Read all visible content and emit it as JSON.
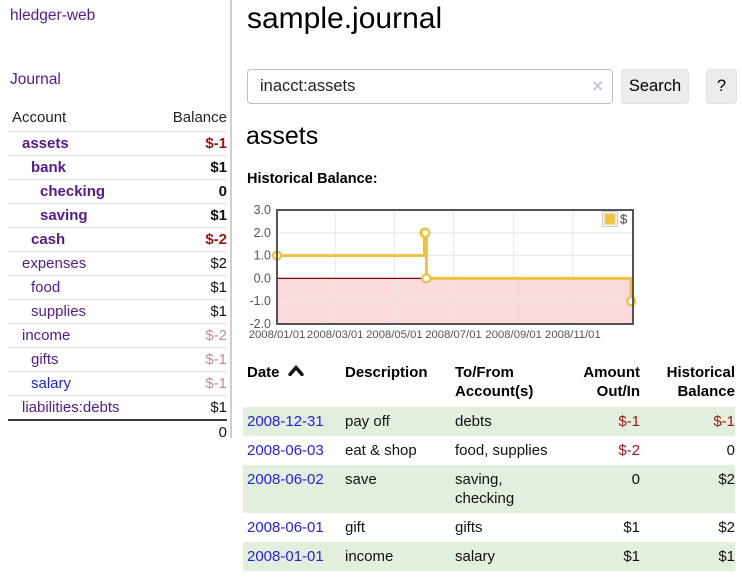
{
  "colors": {
    "link_purple": "#551a8b",
    "link_blue": "#2323dd",
    "neg_strong": "#9e1616",
    "neg_soft": "#c98c8c",
    "row_green": "#e3efdd",
    "button_bg": "#ececec",
    "series_gold": "#edc240",
    "zero_line_red": "#8b0000",
    "area_pink": "#fadada",
    "chart_border": "#545454",
    "gridline": "#e7e7e7",
    "tick_label": "#545454"
  },
  "brand": "hledger-web",
  "nav": {
    "journal": "Journal"
  },
  "sidebar": {
    "header": {
      "account": "Account",
      "balance": "Balance"
    },
    "accounts": [
      {
        "name": "assets",
        "depth": 1,
        "bold": true,
        "link": "purple",
        "balance": "$-1",
        "balance_style": "neg-strong",
        "balance_bold": true
      },
      {
        "name": "bank",
        "depth": 2,
        "bold": true,
        "link": "purple",
        "balance": "$1",
        "balance_style": "normal",
        "balance_bold": true
      },
      {
        "name": "checking",
        "depth": 3,
        "bold": true,
        "link": "purple",
        "balance": "0",
        "balance_style": "normal",
        "balance_bold": true
      },
      {
        "name": "saving",
        "depth": 3,
        "bold": true,
        "link": "purple",
        "balance": "$1",
        "balance_style": "normal",
        "balance_bold": true
      },
      {
        "name": "cash",
        "depth": 2,
        "bold": true,
        "link": "purple",
        "balance": "$-2",
        "balance_style": "neg-strong",
        "balance_bold": true
      },
      {
        "name": "expenses",
        "depth": 1,
        "bold": false,
        "link": "purple",
        "balance": "$2",
        "balance_style": "normal",
        "balance_bold": false
      },
      {
        "name": "food",
        "depth": 2,
        "bold": false,
        "link": "purple",
        "balance": "$1",
        "balance_style": "normal",
        "balance_bold": false
      },
      {
        "name": "supplies",
        "depth": 2,
        "bold": false,
        "link": "purple",
        "balance": "$1",
        "balance_style": "normal",
        "balance_bold": false
      },
      {
        "name": "income",
        "depth": 1,
        "bold": false,
        "link": "purple",
        "balance": "$-2",
        "balance_style": "neg-soft",
        "balance_bold": false
      },
      {
        "name": "gifts",
        "depth": 2,
        "bold": false,
        "link": "purple",
        "balance": "$-1",
        "balance_style": "neg-soft",
        "balance_bold": false
      },
      {
        "name": "salary",
        "depth": 2,
        "bold": false,
        "link": "blue",
        "balance": "$-1",
        "balance_style": "neg-soft",
        "balance_bold": false
      },
      {
        "name": "liabilities:debts",
        "depth": 1,
        "bold": false,
        "link": "purple",
        "balance": "$1",
        "balance_style": "normal",
        "balance_bold": false
      }
    ],
    "total": "0"
  },
  "main": {
    "title": "sample.journal",
    "search": {
      "value": "inacct:assets",
      "clear_glyph": "×",
      "button_label": "Search",
      "help_label": "?"
    },
    "heading": "assets",
    "chart_title": "Historical Balance:"
  },
  "chart_data": {
    "type": "line",
    "style": "steps",
    "title": "Historical Balance",
    "series": [
      {
        "name": "$",
        "points": [
          [
            "2008-01-01",
            1
          ],
          [
            "2008-06-01",
            2
          ],
          [
            "2008-06-02",
            2
          ],
          [
            "2008-06-03",
            0
          ],
          [
            "2008-12-31",
            -1
          ]
        ]
      }
    ],
    "x_ticks": [
      "2008/01/01",
      "2008/03/01",
      "2008/05/01",
      "2008/07/01",
      "2008/09/01",
      "2008/11/01"
    ],
    "x_range": {
      "start": "2008-01-01",
      "span_days": 367
    },
    "y_ticks": [
      "3.0",
      "2.0",
      "1.0",
      "0.0",
      "-1.0",
      "-2.0"
    ],
    "ylim": [
      -2,
      3
    ],
    "grid": true,
    "legend": {
      "label": "$",
      "position": "top-right"
    },
    "negative_region_shaded": true
  },
  "table": {
    "headers": [
      {
        "label": "Date",
        "align": "left",
        "sort": "asc"
      },
      {
        "label": "Description",
        "align": "left"
      },
      {
        "label": "To/From Account(s)",
        "align": "left"
      },
      {
        "label": "Amount Out/In",
        "align": "right"
      },
      {
        "label": "Historical Balance",
        "align": "right"
      }
    ],
    "rows": [
      {
        "date": "2008-12-31",
        "description": "pay off",
        "accounts": "debts",
        "amount": "$-1",
        "amount_negative": true,
        "balance": "$-1",
        "balance_negative": true
      },
      {
        "date": "2008-06-03",
        "description": "eat & shop",
        "accounts": "food, supplies",
        "amount": "$-2",
        "amount_negative": true,
        "balance": "0",
        "balance_negative": false
      },
      {
        "date": "2008-06-02",
        "description": "save",
        "accounts": "saving, checking",
        "amount": "0",
        "amount_negative": false,
        "balance": "$2",
        "balance_negative": false
      },
      {
        "date": "2008-06-01",
        "description": "gift",
        "accounts": "gifts",
        "amount": "$1",
        "amount_negative": false,
        "balance": "$2",
        "balance_negative": false
      },
      {
        "date": "2008-01-01",
        "description": "income",
        "accounts": "salary",
        "amount": "$1",
        "amount_negative": false,
        "balance": "$1",
        "balance_negative": false
      }
    ]
  }
}
